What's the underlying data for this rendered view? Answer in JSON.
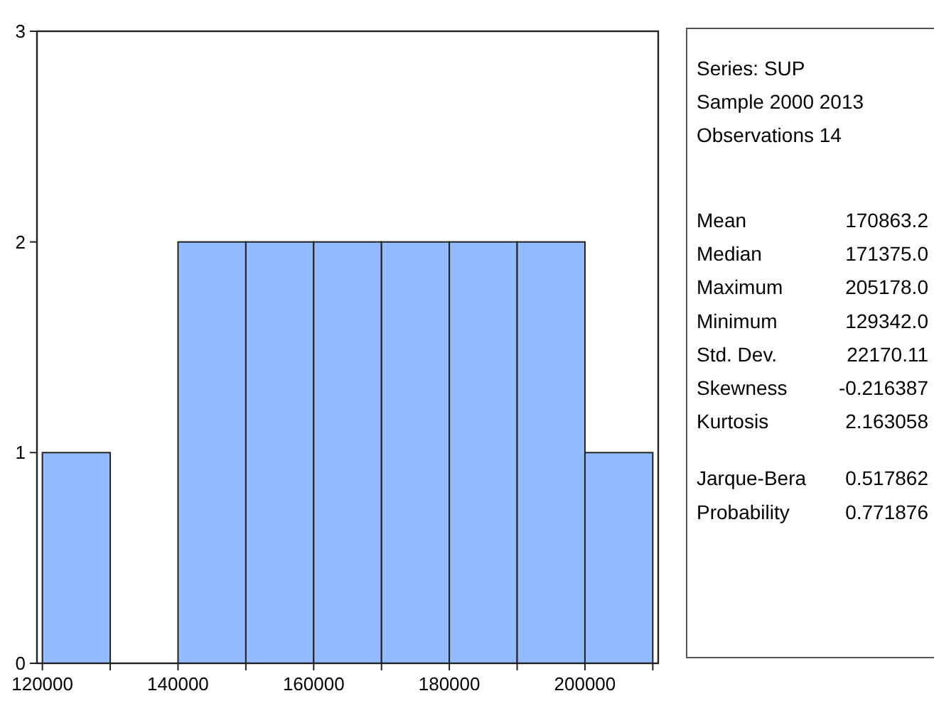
{
  "chart_data": {
    "type": "histogram",
    "bins": [
      120000,
      130000,
      140000,
      150000,
      160000,
      170000,
      180000,
      190000,
      200000,
      210000
    ],
    "values": [
      1,
      0,
      2,
      2,
      2,
      2,
      2,
      2,
      1
    ],
    "color": "#94bbfd",
    "xlim": [
      119200,
      210800
    ],
    "xticks": [
      120000,
      {
        "value": 130000,
        "label": null
      },
      140000,
      {
        "value": 150000,
        "label": null
      },
      160000,
      {
        "value": 170000,
        "label": null
      },
      180000,
      {
        "value": 190000,
        "label": null
      },
      200000,
      {
        "value": 210000,
        "label": null
      }
    ],
    "ylim": [
      0,
      3
    ],
    "yticks": [
      0,
      1,
      2,
      3
    ],
    "annotations": [
      "Series: SUP",
      "Sample 2000 2013",
      "Observations 14",
      "Mean",
      "170863.2",
      "Median",
      "171375.0",
      "Maximum",
      "205178.0",
      "Minimum",
      "129342.0",
      "Std. Dev.",
      "22170.11",
      "Skewness",
      "-0.216387",
      "Kurtosis",
      "2.163058",
      "Jarque-Bera",
      "0.517862",
      "Probability",
      "0.771876"
    ]
  }
}
